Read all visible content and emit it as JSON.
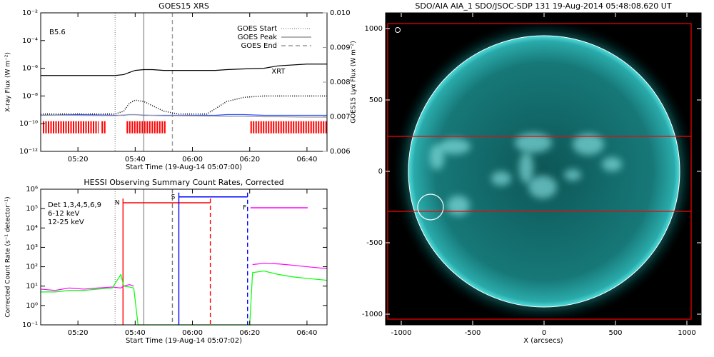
{
  "chart_data": [
    {
      "type": "line",
      "title": "GOES15 XRS",
      "xlabel": "Start Time (19-Aug-14 05:07:00)",
      "ylabel": "X-ray Flux (W m⁻²)",
      "y2label": "GOES15 Lyα Flux (W m⁻²)",
      "xlim": [
        307,
        407
      ],
      "xticks": [
        {
          "value": 320,
          "label": "05:20"
        },
        {
          "value": 340,
          "label": "05:40"
        },
        {
          "value": 360,
          "label": "06:00"
        },
        {
          "value": 380,
          "label": "06:20"
        },
        {
          "value": 400,
          "label": "06:40"
        }
      ],
      "ylog": true,
      "ylim": [
        1e-12,
        0.01
      ],
      "yticks": [
        {
          "value": 1e-12,
          "label": "10⁻¹²"
        },
        {
          "value": 1e-10,
          "label": "10⁻¹⁰"
        },
        {
          "value": 1e-08,
          "label": "10⁻⁸"
        },
        {
          "value": 1e-06,
          "label": "10⁻⁶"
        },
        {
          "value": 0.0001,
          "label": "10⁻⁴"
        },
        {
          "value": 0.01,
          "label": "10⁻²"
        }
      ],
      "y2lim": [
        0.006,
        0.01
      ],
      "y2ticks": [
        0.006,
        0.007,
        0.008,
        0.009,
        {
          "value": 0.01,
          "label": "0.010"
        }
      ],
      "x": [
        307,
        320,
        333,
        336,
        338,
        340,
        343,
        346,
        350,
        355,
        365,
        368,
        372,
        378,
        385,
        390,
        400,
        407
      ],
      "series": [
        {
          "name": "XRT",
          "color": "#000000",
          "label_color": "#ff0000",
          "values": [
            3e-07,
            3e-07,
            3e-07,
            3.5e-07,
            5e-07,
            7e-07,
            8e-07,
            8e-07,
            7e-07,
            7e-07,
            7e-07,
            7e-07,
            8e-07,
            9e-07,
            1e-06,
            1.5e-06,
            2e-06,
            2e-06
          ]
        },
        {
          "color": "#000000",
          "style": "dotted",
          "values": [
            5e-10,
            5e-10,
            5e-10,
            8e-10,
            3e-09,
            5e-09,
            4e-09,
            2e-09,
            8e-10,
            5e-10,
            5e-10,
            1.2e-09,
            4e-09,
            8e-09,
            1e-08,
            1e-08,
            1e-08,
            1e-08
          ]
        },
        {
          "color": "#3050ff",
          "values": [
            4e-10,
            4.5e-10,
            4e-10,
            4e-10,
            4.5e-10,
            4.5e-10,
            4e-10,
            4e-10,
            4e-10,
            4e-10,
            4e-10,
            4e-10,
            4.5e-10,
            4.5e-10,
            4e-10,
            4e-10,
            4e-10,
            4e-10
          ]
        },
        {
          "color": "#999999",
          "axis": "y2",
          "values": [
            0.00705,
            0.00704,
            0.00703,
            0.00705,
            0.00706,
            0.00706,
            0.00705,
            0.00704,
            0.00703,
            0.00703,
            0.00702,
            0.00702,
            0.00701,
            0.00701,
            0.007,
            0.007,
            0.00699,
            0.00699
          ]
        }
      ],
      "markers": [
        {
          "name": "GOES Start",
          "x": 333,
          "color": "#999999",
          "style": "dotted"
        },
        {
          "name": "GOES Peak",
          "x": 343,
          "color": "#999999",
          "style": "solid"
        },
        {
          "name": "GOES End",
          "x": 353,
          "color": "#999999",
          "style": "dashed"
        }
      ],
      "legend": "upper right",
      "coverage": {
        "color": "#ff0000",
        "ylim": [
          2e-11,
          1.5e-10
        ],
        "intervals": [
          [
            307.75,
            327.25
          ],
          [
            328.25,
            329.75
          ],
          [
            337,
            350.75
          ],
          [
            380.25,
            407
          ]
        ]
      },
      "annotations": [
        "B5.6"
      ]
    },
    {
      "type": "line",
      "title": "HESSI Observing Summary Count Rates, Corrected",
      "xlabel": "Start Time (19-Aug-14 05:07:02)",
      "ylabel": "Corrected Count Rate (s⁻¹ detector⁻¹)",
      "xlim": [
        307,
        407
      ],
      "xticks": [
        {
          "value": 320,
          "label": "05:20"
        },
        {
          "value": 340,
          "label": "05:40"
        },
        {
          "value": 360,
          "label": "06:00"
        },
        {
          "value": 380,
          "label": "06:20"
        },
        {
          "value": 400,
          "label": "06:40"
        }
      ],
      "ylog": true,
      "ylim": [
        0.1,
        1000000
      ],
      "yticks": [
        {
          "value": 0.1,
          "label": "10⁻¹"
        },
        {
          "value": 1,
          "label": "10⁰"
        },
        {
          "value": 10,
          "label": "10¹"
        },
        {
          "value": 100,
          "label": "10²"
        },
        {
          "value": 1000,
          "label": "10³"
        },
        {
          "value": 10000,
          "label": "10⁴"
        },
        {
          "value": 100000,
          "label": "10⁵"
        },
        {
          "value": 1000000,
          "label": "10⁶"
        }
      ],
      "x": [
        307,
        312,
        317,
        322,
        327,
        332,
        335,
        336,
        338,
        339.5,
        341,
        350,
        360,
        370,
        380,
        381,
        385,
        390,
        395,
        400,
        407
      ],
      "series": [
        {
          "name": "6-12 keV",
          "color": "#ff00ff",
          "values": [
            7,
            6,
            8,
            7,
            8,
            9,
            8,
            10,
            12,
            10,
            null,
            null,
            null,
            null,
            null,
            130,
            150,
            140,
            120,
            100,
            80
          ]
        },
        {
          "name": "12-25 keV",
          "color": "#00ff00",
          "values": [
            5,
            5,
            6,
            6,
            7,
            8,
            40,
            10,
            9,
            8,
            0.1,
            0.1,
            0.1,
            0.1,
            0.1,
            50,
            60,
            40,
            30,
            25,
            20
          ]
        }
      ],
      "markers": [
        {
          "x": 333,
          "color": "#999999",
          "style": "dotted"
        },
        {
          "x": 343,
          "color": "#999999",
          "style": "solid"
        },
        {
          "x": 353,
          "color": "#777777",
          "style": "dashed"
        }
      ],
      "flags": [
        {
          "label": "N",
          "color": "#ff0000",
          "x": [
            335.75,
            366.25
          ],
          "y": 200000,
          "edges": true
        },
        {
          "label": "S",
          "color": "#0000ff",
          "x": [
            355.25,
            379.25
          ],
          "y": 400000,
          "edges": true
        },
        {
          "label": "F",
          "color": "#ff00ff",
          "x": [
            380.25,
            400.25
          ],
          "y": 110000
        }
      ],
      "legend": "upper left",
      "legend_title": "Det 1,3,4,5,6,9"
    },
    {
      "type": "image",
      "title": "SDO/AIA AIA_1 SDO/JSOC-SDP 131 19-Aug-2014 05:48:08.620 UT",
      "xlabel": "X (arcsecs)",
      "xlim": [
        -1110,
        1100
      ],
      "ylim": [
        -1075,
        1110
      ],
      "xticks": [
        -1000,
        -500,
        0,
        500,
        1000
      ],
      "yticks": [
        -1000,
        -500,
        0,
        500,
        1000
      ],
      "limb_radius": 950,
      "fov": {
        "label": "XRT FOV",
        "color": "#ff0000",
        "x": [
          -1095,
          1030
        ],
        "y": [
          -1035,
          1035
        ],
        "lines": [
          245,
          -280
        ]
      },
      "flare": {
        "label": "AIA flare location",
        "x": -795,
        "y": -250,
        "r": 90
      }
    }
  ]
}
